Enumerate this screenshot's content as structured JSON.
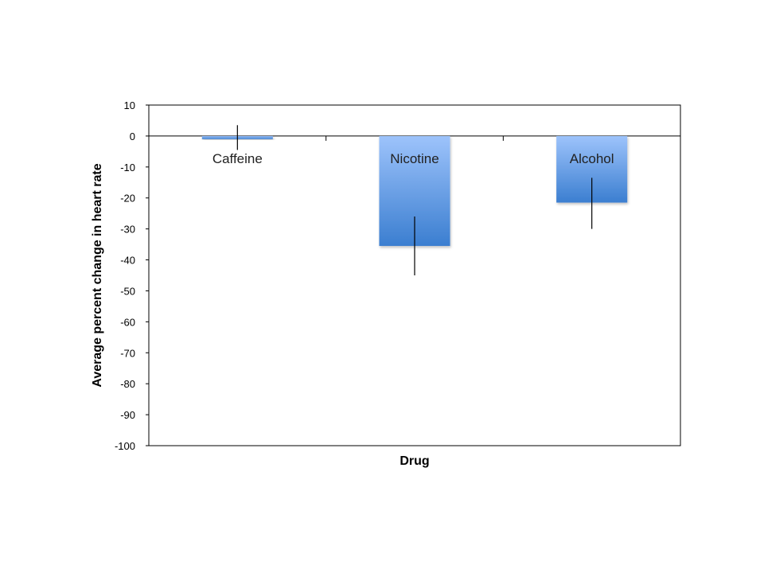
{
  "chart_data": {
    "type": "bar",
    "categories": [
      "Caffeine",
      "Nicotine",
      "Alcohol"
    ],
    "values": [
      -1,
      -35.5,
      -21.5
    ],
    "error_bars": [
      {
        "low": -4.5,
        "high": 3.5
      },
      {
        "low": -45,
        "high": -26
      },
      {
        "low": -30,
        "high": -13.5
      }
    ],
    "xlabel": "Drug",
    "ylabel": "Average percent change in heart rate",
    "ylim": [
      -100,
      10
    ],
    "yticks": [
      10,
      0,
      -10,
      -20,
      -30,
      -40,
      -50,
      -60,
      -70,
      -80,
      -90,
      -100
    ],
    "ytick_labels": [
      "10",
      "0",
      "-10",
      "-20",
      "-30",
      "-40",
      "-50",
      "-60",
      "-70",
      "-80",
      "-90",
      "-100"
    ],
    "grid": false,
    "legend": "none",
    "bar_color_top": "#9DC3FB",
    "bar_color_bottom": "#3B7ED0"
  }
}
